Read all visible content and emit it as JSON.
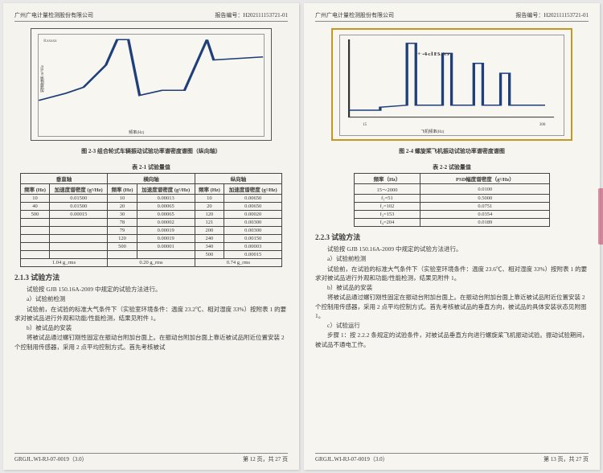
{
  "left": {
    "company": "广州广电计量检测股份有限公司",
    "report_no": "报告编号：H202111153721-01",
    "fig_caption": "图 2-3  组合轮式车辆振动试验功率谱密度谱图（纵向轴）",
    "table_title": "表 2-1  试验量值",
    "chart": {
      "ylabel": "加速度谱 m²/Hz",
      "xlabel": "频率(Hz)",
      "ticks_note": "8.xxxxx",
      "line_color": "#1f3f7a",
      "points": [
        [
          0,
          35
        ],
        [
          12,
          42
        ],
        [
          20,
          48
        ],
        [
          30,
          70
        ],
        [
          35,
          95
        ],
        [
          40,
          95
        ],
        [
          45,
          40
        ],
        [
          55,
          45
        ],
        [
          65,
          45
        ],
        [
          75,
          95
        ],
        [
          78,
          75
        ],
        [
          100,
          78
        ]
      ]
    },
    "t1": {
      "group_headers": [
        "垂直轴",
        "横向轴",
        "纵向轴"
      ],
      "sub_headers": [
        "频率 (Hz)",
        "加速度谱密度 (g²/Hz)"
      ],
      "rows": [
        [
          "10",
          "0.01500",
          "10",
          "0.00013",
          "10",
          "0.00650"
        ],
        [
          "40",
          "0.01500",
          "20",
          "0.00065",
          "20",
          "0.00650"
        ],
        [
          "500",
          "0.00015",
          "30",
          "0.00065",
          "120",
          "0.00020"
        ],
        [
          "",
          "",
          "78",
          "0.00002",
          "121",
          "0.00300"
        ],
        [
          "",
          "",
          "79",
          "0.00019",
          "200",
          "0.00300"
        ],
        [
          "",
          "",
          "120",
          "0.00019",
          "240",
          "0.00150"
        ],
        [
          "",
          "",
          "500",
          "0.00001",
          "340",
          "0.00003"
        ],
        [
          "",
          "",
          "",
          "",
          "500",
          "0.00015"
        ]
      ],
      "rms": [
        "1.04 g_rms",
        "0.20 g_rms",
        "0.74 g_rms"
      ]
    },
    "sec_h": "2.1.3 试验方法",
    "p1": "试验按 GJB 150.16A-2009 中规定的试验方法进行。",
    "p2": "a）试验前检测",
    "p3": "试验前，在试验的标准大气条件下（实验室环境条件：温度 23.2℃、相对湿度 33%）按附表 1 的要求对被试品进行外观和功能/性能检测，结果见附件 1。",
    "p4": "b）被试品的安装",
    "p5": "将被试品通过螺钉刚性固定在振动台附加台面上。在振动台附加台面上靠近被试品附近位置安装 2 个控制用传感器，采用 2 点平均控制方式。首先考核被试",
    "footer_l": "GRGJL.WI-RJ-07-0019（3.0）",
    "footer_r": "第 12 页，共 27 页"
  },
  "right": {
    "company": "广州广电计量检测股份有限公司",
    "report_no": "报告编号：H202111153721-01",
    "fig_caption": "图 2-4  螺旋桨飞机振动试验功率谱密度谱图",
    "table_title": "表 2-2  试验量值",
    "chart": {
      "ylabel": "L",
      "xlabel": "飞机频率(Hz)",
      "xticks": [
        "15",
        "300"
      ],
      "peaks_label": "+4dB/o",
      "line_color": "#1f3f7a",
      "border_color": "#c49820"
    },
    "t2": {
      "headers": [
        "频率（Hz）",
        "PSD幅度谱密度（g²/Hz）"
      ],
      "rows": [
        [
          "15～2000",
          "0.0100"
        ],
        [
          "f₁=51",
          "0.5000"
        ],
        [
          "f₂=102",
          "0.0751"
        ],
        [
          "f₃=153",
          "0.0354"
        ],
        [
          "f₄=204",
          "0.0189"
        ]
      ]
    },
    "sec_h": "2.2.3 试验方法",
    "p1": "试验按 GJB 150.16A-2009 中规定的试验方法进行。",
    "p2": "a）试验前检测",
    "p3": "试验前，在试验的标准大气条件下（实验室环境条件：温度 23.6℃、相对湿度 33%）按附表 1 的要求对被试品进行外观和功能/性能检测，结果见附件 1。",
    "p4": "b）被试品的安装",
    "p5": "将被试品通过螺钉刚性固定在振动台附加台面上。在振动台附加台面上靠近被试品附近位置安装 2 个控制用传感器，采用 2 点平均控制方式。首先考核被试品的垂直方向，被试品的具体安装状态见附图 1。",
    "p6": "c）试验运行",
    "p7": "步骤 1：按 2.2.2 条规定的试验条件，对被试品垂直方向进行螺旋桨飞机振动试验。振动试验期间，被试品不通电工作。",
    "footer_l": "GRGJL.WI-RJ-07-0019（3.0）",
    "footer_r": "第 13 页，共 27 页"
  }
}
